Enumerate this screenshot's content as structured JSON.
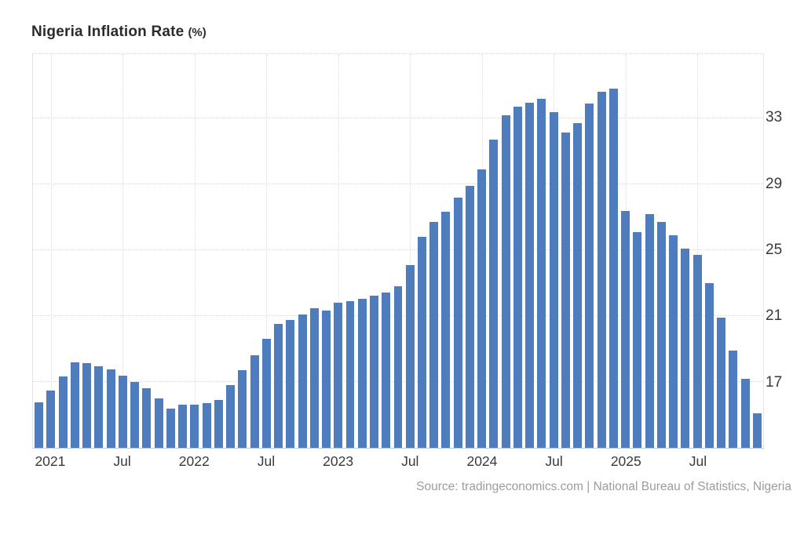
{
  "title": {
    "main": "Nigeria Inflation Rate",
    "unit": "(%)"
  },
  "source": {
    "credit": "Source: tradingeconomics.com | National Bureau of Statistics, Nigeria"
  },
  "colors": {
    "bar": "#4e7cbc",
    "grid": "#d9d9d9",
    "axis_text": "#3a3a3a",
    "title_text": "#2b2b2b",
    "source_text": "#9c9c9c",
    "plot_border": "#e4e4e4"
  },
  "chart_data": {
    "type": "bar",
    "title": "Nigeria Inflation Rate (%)",
    "xlabel": "",
    "ylabel": "",
    "grid": true,
    "legend": "none",
    "y_axis_side": "right",
    "ylim": [
      13,
      36.9
    ],
    "y_ticks": [
      17,
      21,
      25,
      29,
      33
    ],
    "x": [
      "2020-12",
      "2021-01",
      "2021-02",
      "2021-03",
      "2021-04",
      "2021-05",
      "2021-06",
      "2021-07",
      "2021-08",
      "2021-09",
      "2021-10",
      "2021-11",
      "2021-12",
      "2022-01",
      "2022-02",
      "2022-03",
      "2022-04",
      "2022-05",
      "2022-06",
      "2022-07",
      "2022-08",
      "2022-09",
      "2022-10",
      "2022-11",
      "2022-12",
      "2023-01",
      "2023-02",
      "2023-03",
      "2023-04",
      "2023-05",
      "2023-06",
      "2023-07",
      "2023-08",
      "2023-09",
      "2023-10",
      "2023-11",
      "2023-12",
      "2024-01",
      "2024-02",
      "2024-03",
      "2024-04",
      "2024-05",
      "2024-06",
      "2024-07",
      "2024-08",
      "2024-09",
      "2024-10",
      "2024-11",
      "2024-12",
      "2025-01",
      "2025-02",
      "2025-03",
      "2025-04",
      "2025-05",
      "2025-06",
      "2025-07",
      "2025-08",
      "2025-09",
      "2025-10",
      "2025-11",
      "2025-12"
    ],
    "values": [
      15.75,
      16.47,
      17.33,
      18.17,
      18.12,
      17.93,
      17.75,
      17.38,
      17.01,
      16.63,
      15.99,
      15.4,
      15.63,
      15.6,
      15.7,
      15.92,
      16.82,
      17.71,
      18.6,
      19.64,
      20.52,
      20.77,
      21.09,
      21.47,
      21.34,
      21.82,
      21.91,
      22.04,
      22.22,
      22.41,
      22.79,
      24.08,
      25.8,
      26.72,
      27.33,
      28.2,
      28.92,
      29.9,
      31.7,
      33.2,
      33.69,
      33.95,
      34.19,
      33.4,
      32.15,
      32.7,
      33.88,
      34.6,
      34.8,
      27.4,
      26.1,
      27.2,
      26.7,
      25.9,
      25.1,
      24.7,
      23.0,
      20.9,
      18.9,
      17.2,
      15.1
    ],
    "x_ticks": [
      {
        "index": 1,
        "label": "2021"
      },
      {
        "index": 7,
        "label": "Jul"
      },
      {
        "index": 13,
        "label": "2022"
      },
      {
        "index": 19,
        "label": "Jul"
      },
      {
        "index": 25,
        "label": "2023"
      },
      {
        "index": 31,
        "label": "Jul"
      },
      {
        "index": 37,
        "label": "2024"
      },
      {
        "index": 43,
        "label": "Jul"
      },
      {
        "index": 49,
        "label": "2025"
      },
      {
        "index": 55,
        "label": "Jul"
      }
    ]
  }
}
